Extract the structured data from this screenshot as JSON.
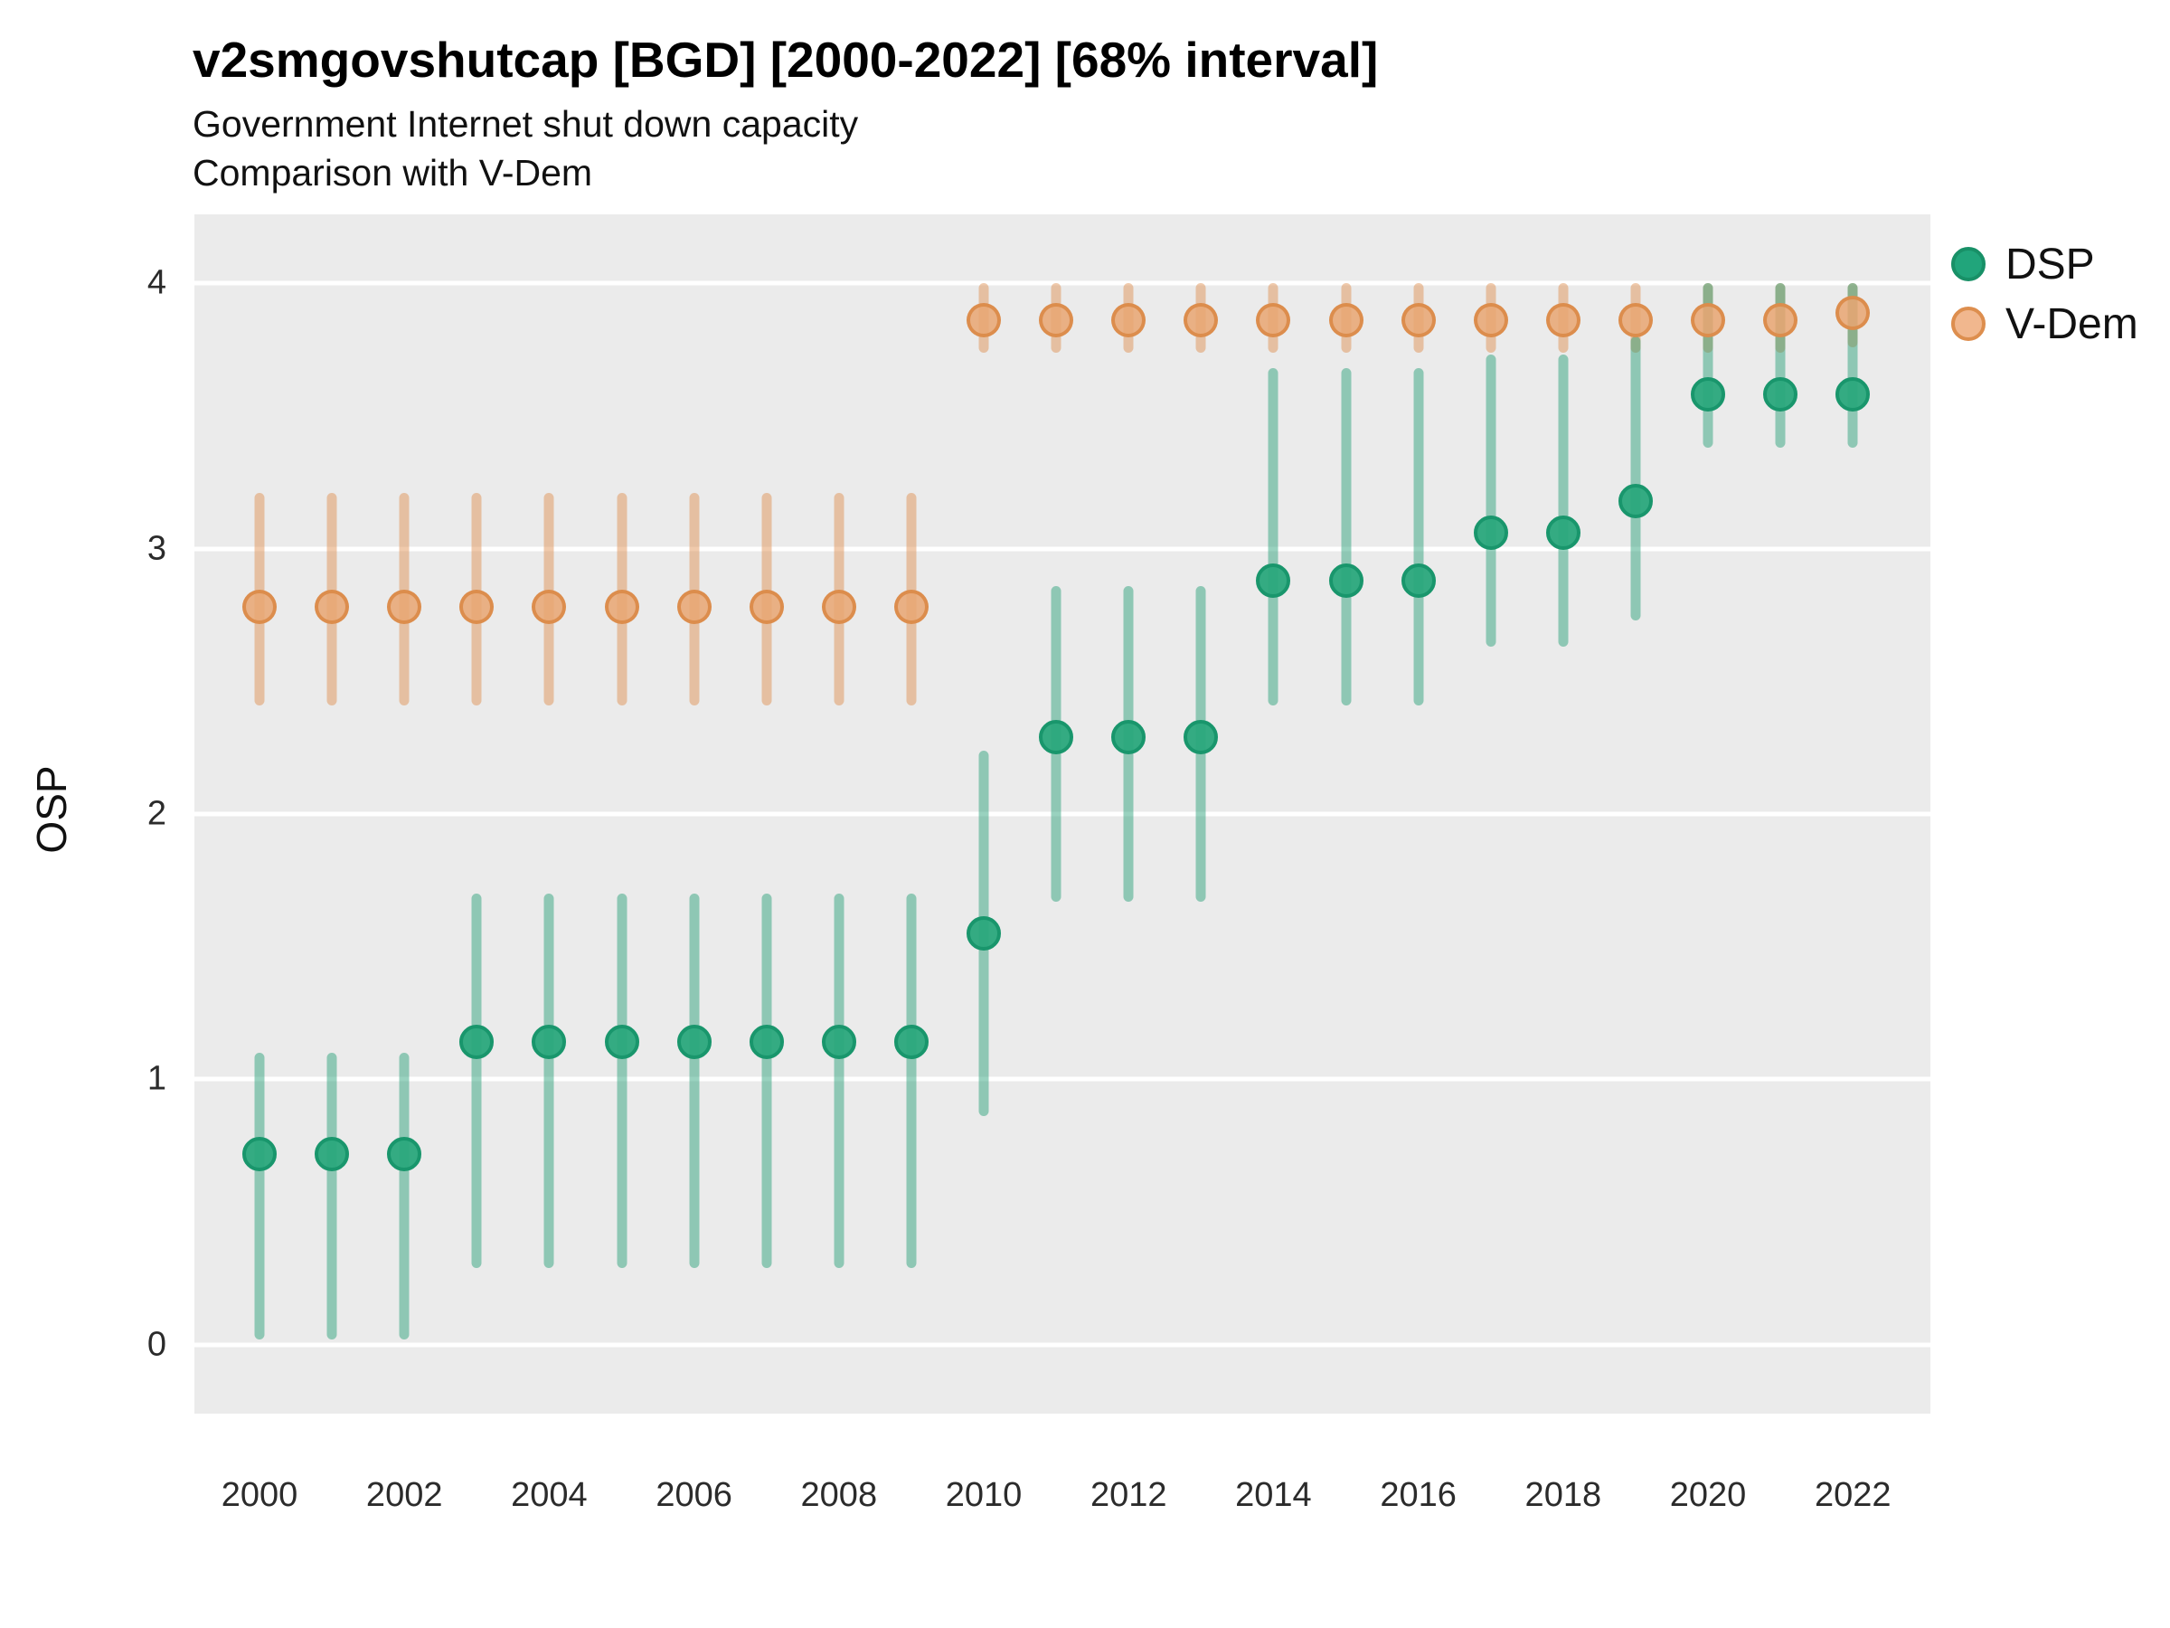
{
  "header": {
    "title": "v2smgovshutcap [BGD] [2000-2022] [68% interval]",
    "subtitle1": "Government Internet shut down capacity",
    "subtitle2": "Comparison with V-Dem"
  },
  "chart_data": {
    "type": "scatter",
    "title": "v2smgovshutcap [BGD] [2000-2022] [68% interval]",
    "subtitle": [
      "Government Internet shut down capacity",
      "Comparison with V-Dem"
    ],
    "ylabel": "OSP",
    "xlabel": "",
    "interval": "68%",
    "grid": true,
    "legend_position": "right",
    "panel_bg": "#EBEBEB",
    "gridline_color": "#FFFFFF",
    "y_axis": {
      "ticks": [
        0,
        1,
        2,
        3,
        4
      ],
      "range": [
        -0.26,
        4.26
      ]
    },
    "x_axis": {
      "tick_years": [
        2000,
        2002,
        2004,
        2006,
        2008,
        2010,
        2012,
        2014,
        2016,
        2018,
        2020,
        2022
      ],
      "x0_frac": 0.0375,
      "per_year_frac": 0.04172
    },
    "legend": [
      {
        "label": "DSP",
        "dot_fill": "#21A57B",
        "dot_stroke": "#189067"
      },
      {
        "label": "V-Dem",
        "dot_fill": "#F1B78E",
        "dot_stroke": "#DD8E4E"
      }
    ],
    "series": [
      {
        "name": "V-Dem",
        "bar_color": "rgba(222,137,70,0.45)",
        "point_fill": "rgba(233,166,114,0.85)",
        "point_stroke": "rgba(219,139,74,0.95)",
        "points": [
          {
            "year": 2000,
            "value": 2.78,
            "lo": 2.41,
            "hi": 3.21
          },
          {
            "year": 2001,
            "value": 2.78,
            "lo": 2.41,
            "hi": 3.21
          },
          {
            "year": 2002,
            "value": 2.78,
            "lo": 2.41,
            "hi": 3.21
          },
          {
            "year": 2003,
            "value": 2.78,
            "lo": 2.41,
            "hi": 3.21
          },
          {
            "year": 2004,
            "value": 2.78,
            "lo": 2.41,
            "hi": 3.21
          },
          {
            "year": 2005,
            "value": 2.78,
            "lo": 2.41,
            "hi": 3.21
          },
          {
            "year": 2006,
            "value": 2.78,
            "lo": 2.41,
            "hi": 3.21
          },
          {
            "year": 2007,
            "value": 2.78,
            "lo": 2.41,
            "hi": 3.21
          },
          {
            "year": 2008,
            "value": 2.78,
            "lo": 2.41,
            "hi": 3.21
          },
          {
            "year": 2009,
            "value": 2.78,
            "lo": 2.41,
            "hi": 3.21
          },
          {
            "year": 2010,
            "value": 3.86,
            "lo": 3.74,
            "hi": 4.0
          },
          {
            "year": 2011,
            "value": 3.86,
            "lo": 3.74,
            "hi": 4.0
          },
          {
            "year": 2012,
            "value": 3.86,
            "lo": 3.74,
            "hi": 4.0
          },
          {
            "year": 2013,
            "value": 3.86,
            "lo": 3.74,
            "hi": 4.0
          },
          {
            "year": 2014,
            "value": 3.86,
            "lo": 3.74,
            "hi": 4.0
          },
          {
            "year": 2015,
            "value": 3.86,
            "lo": 3.74,
            "hi": 4.0
          },
          {
            "year": 2016,
            "value": 3.86,
            "lo": 3.74,
            "hi": 4.0
          },
          {
            "year": 2017,
            "value": 3.86,
            "lo": 3.74,
            "hi": 4.0
          },
          {
            "year": 2018,
            "value": 3.86,
            "lo": 3.74,
            "hi": 4.0
          },
          {
            "year": 2019,
            "value": 3.86,
            "lo": 3.74,
            "hi": 4.0
          },
          {
            "year": 2020,
            "value": 3.86,
            "lo": 3.74,
            "hi": 4.0
          },
          {
            "year": 2021,
            "value": 3.86,
            "lo": 3.74,
            "hi": 4.0
          },
          {
            "year": 2022,
            "value": 3.89,
            "lo": 3.76,
            "hi": 4.0
          }
        ]
      },
      {
        "name": "DSP",
        "bar_color": "rgba(28,155,112,0.45)",
        "point_fill": "rgba(42,168,124,0.95)",
        "point_stroke": "rgba(25,150,108,1)",
        "points": [
          {
            "year": 2000,
            "value": 0.72,
            "lo": 0.02,
            "hi": 1.1
          },
          {
            "year": 2001,
            "value": 0.72,
            "lo": 0.02,
            "hi": 1.1
          },
          {
            "year": 2002,
            "value": 0.72,
            "lo": 0.02,
            "hi": 1.1
          },
          {
            "year": 2003,
            "value": 1.14,
            "lo": 0.29,
            "hi": 1.7
          },
          {
            "year": 2004,
            "value": 1.14,
            "lo": 0.29,
            "hi": 1.7
          },
          {
            "year": 2005,
            "value": 1.14,
            "lo": 0.29,
            "hi": 1.7
          },
          {
            "year": 2006,
            "value": 1.14,
            "lo": 0.29,
            "hi": 1.7
          },
          {
            "year": 2007,
            "value": 1.14,
            "lo": 0.29,
            "hi": 1.7
          },
          {
            "year": 2008,
            "value": 1.14,
            "lo": 0.29,
            "hi": 1.7
          },
          {
            "year": 2009,
            "value": 1.14,
            "lo": 0.29,
            "hi": 1.7
          },
          {
            "year": 2010,
            "value": 1.55,
            "lo": 0.86,
            "hi": 2.24
          },
          {
            "year": 2011,
            "value": 2.29,
            "lo": 1.67,
            "hi": 2.86
          },
          {
            "year": 2012,
            "value": 2.29,
            "lo": 1.67,
            "hi": 2.86
          },
          {
            "year": 2013,
            "value": 2.29,
            "lo": 1.67,
            "hi": 2.86
          },
          {
            "year": 2014,
            "value": 2.88,
            "lo": 2.41,
            "hi": 3.68
          },
          {
            "year": 2015,
            "value": 2.88,
            "lo": 2.41,
            "hi": 3.68
          },
          {
            "year": 2016,
            "value": 2.88,
            "lo": 2.41,
            "hi": 3.68
          },
          {
            "year": 2017,
            "value": 3.06,
            "lo": 2.63,
            "hi": 3.73
          },
          {
            "year": 2018,
            "value": 3.06,
            "lo": 2.63,
            "hi": 3.73
          },
          {
            "year": 2019,
            "value": 3.18,
            "lo": 2.73,
            "hi": 3.8
          },
          {
            "year": 2020,
            "value": 3.58,
            "lo": 3.38,
            "hi": 4.0
          },
          {
            "year": 2021,
            "value": 3.58,
            "lo": 3.38,
            "hi": 4.0
          },
          {
            "year": 2022,
            "value": 3.58,
            "lo": 3.38,
            "hi": 4.0
          }
        ]
      }
    ]
  }
}
